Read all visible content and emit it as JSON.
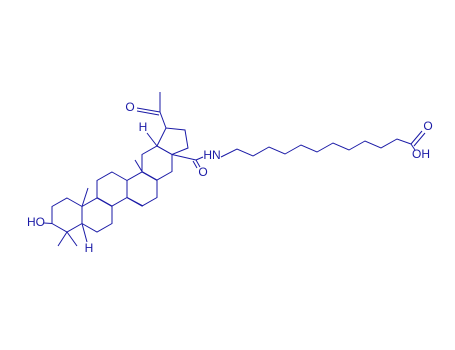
{
  "labels": {
    "acetyl_oxygen": "O",
    "stereo_h_top": "H",
    "amide_oxygen": "O",
    "amide_nh": "HN",
    "acid_oxygen": "O",
    "acid_oh": "OH",
    "hydroxyl": "HO",
    "stereo_h_bottom": "H"
  }
}
